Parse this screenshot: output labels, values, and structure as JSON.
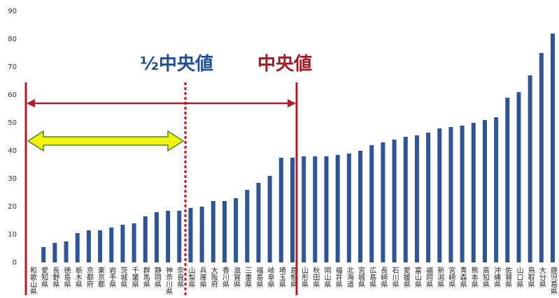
{
  "chart_data": {
    "type": "bar",
    "categories": [
      "和歌山県",
      "愛知県",
      "長野県",
      "徳島県",
      "栃木県",
      "京都府",
      "東京都",
      "岩手県",
      "茨城県",
      "千葉県",
      "群馬県",
      "静岡県",
      "神奈川県",
      "奈良県",
      "山梨県",
      "兵庫県",
      "大阪府",
      "香川県",
      "滋賀県",
      "三重県",
      "福島県",
      "岐阜県",
      "埼玉県",
      "島根県",
      "山形県",
      "秋田県",
      "岡山県",
      "福井県",
      "北海道",
      "宮城県",
      "広島県",
      "長崎県",
      "石川県",
      "愛媛県",
      "富山県",
      "福岡県",
      "新潟県",
      "宮崎県",
      "青森県",
      "熊本県",
      "高知県",
      "沖縄県",
      "佐賀県",
      "山口県",
      "鳥取県",
      "大分県",
      "鹿児島県"
    ],
    "values": [
      0,
      5.5,
      7,
      7.5,
      10.5,
      11.5,
      11.5,
      12.5,
      13.5,
      14,
      16.5,
      18,
      18.5,
      18.5,
      19.5,
      20,
      22,
      22,
      23,
      26,
      28.5,
      31,
      37.5,
      37.5,
      38,
      38,
      38,
      38.5,
      39,
      40,
      42,
      43,
      44,
      45,
      45.5,
      46.5,
      48,
      48.5,
      49,
      50,
      51,
      52,
      59,
      61,
      67,
      75,
      82
    ],
    "color": "#2f5597",
    "ylim": [
      0,
      90
    ],
    "yticks": [
      0,
      10,
      20,
      30,
      40,
      50,
      60,
      70,
      80,
      90
    ],
    "annotations": [
      "½中央値",
      "中央値"
    ]
  }
}
